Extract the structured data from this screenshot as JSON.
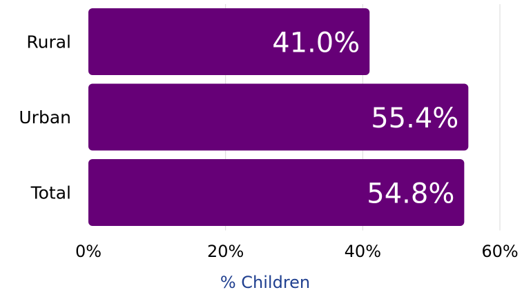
{
  "chart_data": {
    "type": "bar",
    "orientation": "horizontal",
    "categories": [
      "Rural",
      "Urban",
      "Total"
    ],
    "values": [
      41.0,
      55.4,
      54.8
    ],
    "value_labels": [
      "41.0%",
      "55.4%",
      "54.8%"
    ],
    "title": "",
    "xlabel": "% Children",
    "ylabel": "",
    "xlim": [
      0,
      60
    ],
    "xticks": [
      0,
      20,
      40,
      60
    ],
    "xtick_labels": [
      "0%",
      "20%",
      "40%",
      "60%"
    ],
    "grid": "vertical",
    "legend": "none",
    "colors": {
      "bar": "#660077",
      "grid": "#d9d9d9",
      "xlabel": "#1f3f8f",
      "value_label": "#ffffff"
    }
  }
}
